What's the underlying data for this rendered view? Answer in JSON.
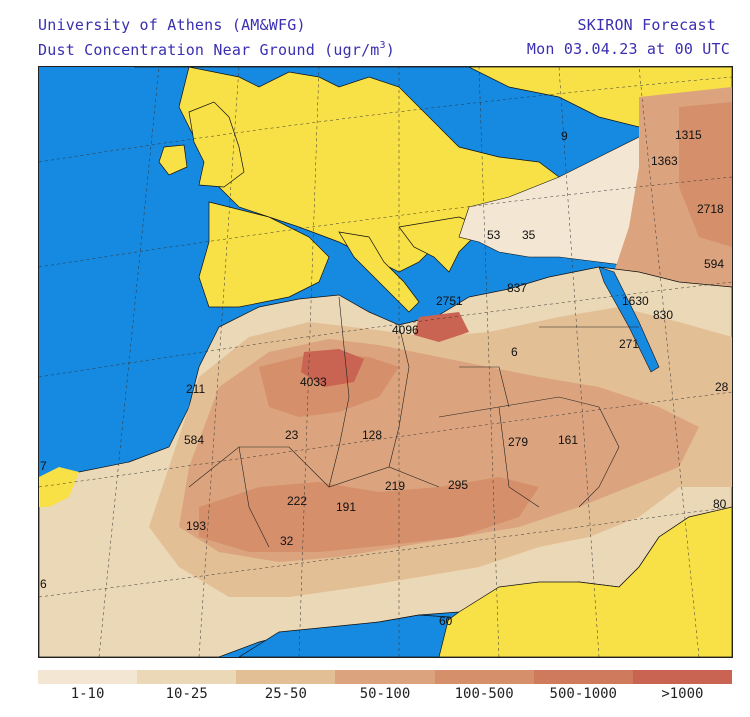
{
  "header": {
    "left_line1": "University of Athens (AM&WFG)",
    "left_line2_prefix": "Dust Concentration Near Ground (ugr/m",
    "left_line2_sup": "3",
    "left_line2_suffix": ")",
    "right_line1": "SKIRON Forecast",
    "right_line2": "Mon 03.04.23 at 00 UTC"
  },
  "colors": {
    "sea": "#1689e0",
    "dust_free_land": "#f8e047",
    "level_1": "#f3e6d3",
    "level_2": "#ead8b6",
    "level_3": "#e3bf96",
    "level_4": "#dba47e",
    "level_5": "#d58f6a",
    "level_6": "#cf7a5c",
    "level_7": "#c96352"
  },
  "legend": [
    {
      "label": "1-10",
      "color": "#f3e6d3"
    },
    {
      "label": "10-25",
      "color": "#ead8b6"
    },
    {
      "label": "25-50",
      "color": "#e3bf96"
    },
    {
      "label": "50-100",
      "color": "#dba47e"
    },
    {
      "label": "100-500",
      "color": "#d58f6a"
    },
    {
      "label": "500-1000",
      "color": "#cf7a5c"
    },
    {
      "label": ">1000",
      "color": "#c96352"
    }
  ],
  "map_values": {
    "v1315": "1315",
    "v1363": "1363",
    "v2718": "2718",
    "v594": "594",
    "v1630": "1630",
    "v830": "830",
    "v271": "271",
    "v28": "28",
    "v9": "9",
    "v53": "53",
    "v35": "35",
    "v837": "837",
    "v2751": "2751",
    "v4096": "4096",
    "v6": "6",
    "v4033": "4033",
    "v211": "211",
    "v584": "584",
    "v23": "23",
    "v128": "128",
    "v279": "279",
    "v161": "161",
    "v7": "7",
    "v222": "222",
    "v191": "191",
    "v219": "219",
    "v295": "295",
    "v80": "80",
    "v193": "193",
    "v32": "32",
    "v6b": "6",
    "v60": "60"
  }
}
